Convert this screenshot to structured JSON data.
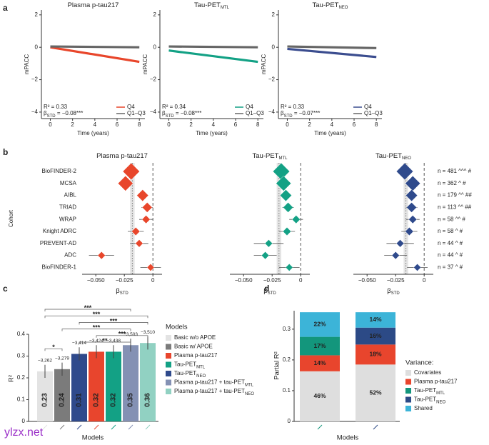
{
  "panel_letters": [
    "a",
    "b",
    "c",
    "d"
  ],
  "watermark": "ylzx.net",
  "chart_data": [
    {
      "type": "line",
      "title": "Plasma p-tau217",
      "x_label": "Time (years)",
      "y_label": "mPACC",
      "x": [
        0,
        8
      ],
      "xlim": [
        -0.8,
        8.5
      ],
      "ylim": [
        -4.4,
        2.3
      ],
      "xticks": [
        0,
        2,
        4,
        6,
        8
      ],
      "yticks": [
        {
          "value": -4,
          "label": "−4"
        },
        {
          "value": -2,
          "label": "−2"
        },
        0,
        2
      ],
      "series": [
        {
          "name": "Q4",
          "color": "#e8462b",
          "values": [
            0.0,
            -0.9
          ]
        },
        {
          "name": "Q1–Q3",
          "color": "#666666",
          "values": [
            0.05,
            0.0
          ]
        }
      ],
      "annotations": {
        "r2": "R² = 0.33",
        "beta": "β",
        "beta_sub": "STD",
        "beta_text": " = −0.08***"
      },
      "legend": "lower right"
    },
    {
      "type": "line",
      "title": "Tau-PET",
      "title_sub": "MTL",
      "x_label": "Time (years)",
      "y_label": "mPACC",
      "x": [
        0,
        8
      ],
      "xlim": [
        -0.8,
        8.5
      ],
      "ylim": [
        -4.4,
        2.3
      ],
      "xticks": [
        0,
        2,
        4,
        6,
        8
      ],
      "yticks": [
        {
          "value": -4,
          "label": "−4"
        },
        {
          "value": -2,
          "label": "−2"
        },
        0,
        2
      ],
      "series": [
        {
          "name": "Q4",
          "color": "#13a185",
          "values": [
            -0.2,
            -0.9
          ]
        },
        {
          "name": "Q1–Q3",
          "color": "#666666",
          "values": [
            0.05,
            0.0
          ]
        }
      ],
      "annotations": {
        "r2": "R² = 0.34",
        "beta": "β",
        "beta_sub": "STD",
        "beta_text": " = −0.08***"
      },
      "legend": "lower right"
    },
    {
      "type": "line",
      "title": "Tau-PET",
      "title_sub": "NEO",
      "x_label": "Time (years)",
      "y_label": "mPACC",
      "x": [
        0,
        8
      ],
      "xlim": [
        -0.8,
        8.5
      ],
      "ylim": [
        -4.4,
        2.3
      ],
      "xticks": [
        0,
        2,
        4,
        6,
        8
      ],
      "yticks": [
        {
          "value": -4,
          "label": "−4"
        },
        {
          "value": -2,
          "label": "−2"
        },
        0,
        2
      ],
      "series": [
        {
          "name": "Q4",
          "color": "#3b4d8f",
          "values": [
            -0.1,
            -0.6
          ]
        },
        {
          "name": "Q1–Q3",
          "color": "#666666",
          "values": [
            0.05,
            -0.05
          ]
        }
      ],
      "annotations": {
        "r2": "R² = 0.33",
        "beta": "β",
        "beta_sub": "STD",
        "beta_text": " = −0.07***"
      },
      "legend": "lower right"
    },
    {
      "type": "forest",
      "title": "Plasma p-tau217",
      "y_label": "Cohort",
      "x_label": "β",
      "x_label_sub": "STD",
      "color": "#e8462b",
      "categories": [
        "BioFINDER-2",
        "MCSA",
        "AIBL",
        "TRIAD",
        "WRAP",
        "Knight ADRC",
        "PREVENT-AD",
        "ADC",
        "BioFINDER-1"
      ],
      "n": [
        481,
        362,
        179,
        113,
        58,
        58,
        44,
        44,
        37
      ],
      "n_labels": [
        "n = 481 ^^^ #",
        "n = 362 ^ #",
        "n = 179 ^^ ##",
        "n = 113 ^^ ##",
        "n = 58 ^^ #",
        "n = 58 ^ #",
        "n = 44 ^ #",
        "n = 44 ^ #",
        "n = 37 ^ #"
      ],
      "values": [
        -0.019,
        -0.024,
        -0.009,
        -0.005,
        -0.006,
        -0.015,
        -0.012,
        -0.045,
        -0.002
      ],
      "errors": [
        0.004,
        0.004,
        0.004,
        0.005,
        0.006,
        0.007,
        0.008,
        0.011,
        0.009
      ],
      "pooled": -0.018,
      "pooled_ci": 0.002,
      "xlim": [
        -0.062,
        0.008
      ],
      "xticks": [
        {
          "value": -0.05,
          "label": "−0.050"
        },
        {
          "value": -0.025,
          "label": "−0.025"
        },
        0
      ]
    },
    {
      "type": "forest",
      "title": "Tau-PET",
      "title_sub": "MTL",
      "x_label": "β",
      "x_label_sub": "STD",
      "color": "#13a185",
      "values": [
        -0.017,
        -0.015,
        -0.013,
        -0.011,
        -0.004,
        -0.012,
        -0.028,
        -0.031,
        -0.01
      ],
      "errors": [
        0.004,
        0.004,
        0.004,
        0.005,
        0.006,
        0.007,
        0.013,
        0.01,
        0.009
      ],
      "pooled": -0.019,
      "pooled_ci": 0.002,
      "xlim": [
        -0.062,
        0.008
      ],
      "xticks": [
        {
          "value": -0.05,
          "label": "−0.050"
        },
        {
          "value": -0.025,
          "label": "−0.025"
        },
        0
      ]
    },
    {
      "type": "forest",
      "title": "Tau-PET",
      "title_sub": "NEO",
      "x_label": "β",
      "x_label_sub": "STD",
      "color": "#2f4a8c",
      "values": [
        -0.017,
        -0.01,
        -0.011,
        -0.011,
        -0.01,
        -0.013,
        -0.021,
        -0.025,
        -0.006
      ],
      "errors": [
        0.004,
        0.004,
        0.004,
        0.005,
        0.006,
        0.007,
        0.012,
        0.01,
        0.009
      ],
      "pooled": -0.016,
      "pooled_ci": 0.002,
      "xlim": [
        -0.062,
        0.008
      ],
      "xticks": [
        {
          "value": -0.05,
          "label": "−0.050"
        },
        {
          "value": -0.025,
          "label": "−0.025"
        },
        0
      ]
    },
    {
      "type": "bar",
      "x_label": "Models",
      "y_label": "R²",
      "values": [
        0.23,
        0.24,
        0.31,
        0.32,
        0.32,
        0.35,
        0.36
      ],
      "errors": [
        0.03,
        0.03,
        0.03,
        0.03,
        0.03,
        0.03,
        0.03
      ],
      "colors": [
        "#e3e3e3",
        "#7b7b7b",
        "#2f4a8c",
        "#e8452d",
        "#13a185",
        "#8491b4",
        "#91d1c2"
      ],
      "aic_labels": [
        "−3,262",
        "−3,279",
        "−3,414",
        "−3,424",
        "−3,438",
        "−3,503",
        "−3,510"
      ],
      "ylim": [
        0,
        0.4
      ],
      "yticks": [
        0,
        0.1,
        0.2,
        0.3,
        0.4
      ],
      "brackets": [
        {
          "from": 0,
          "to": 5,
          "label": "***"
        },
        {
          "from": 0,
          "to": 6,
          "label": "***"
        },
        {
          "from": 2,
          "to": 6,
          "label": "***"
        },
        {
          "from": 1,
          "to": 5,
          "label": "***"
        },
        {
          "from": 3,
          "to": 6,
          "label": "***"
        },
        {
          "from": 2,
          "to": 5,
          "label": "**"
        },
        {
          "from": 0,
          "to": 1,
          "label": "*"
        }
      ],
      "legend": {
        "title": "Models",
        "entries": [
          {
            "name": "Basic w/o APOE",
            "color": "#e3e3e3"
          },
          {
            "name": "Basic w/ APOE",
            "color": "#7b7b7b"
          },
          {
            "name": "Plasma p-tau217",
            "color": "#e8452d"
          },
          {
            "name": "Tau-PET",
            "sub": "MTL",
            "color": "#13a185"
          },
          {
            "name": "Tau-PET",
            "sub": "NEO",
            "color": "#2f4a8c"
          },
          {
            "name": "Plasma p-tau217 + tau-PET",
            "sub": "MTL",
            "color": "#8491b4"
          },
          {
            "name": "Plasma p-tau217 + tau-PET",
            "sub": "NEO",
            "color": "#91d1c2"
          }
        ]
      }
    },
    {
      "type": "stacked_bar",
      "x_label": "Models",
      "y_label": "Partial R²",
      "legend_title": "Variance:",
      "ylim": [
        0,
        0.36
      ],
      "yticks": [
        0,
        0.1,
        0.2,
        0.3
      ],
      "series": [
        {
          "name": "Covariates",
          "color": "#dedede",
          "values": [
            0.163,
            0.185
          ],
          "labels": [
            "46%",
            "52%"
          ]
        },
        {
          "name": "Plasma p-tau217",
          "color": "#e8452d",
          "values": [
            0.052,
            0.065
          ],
          "labels": [
            "14%",
            "18%"
          ]
        },
        {
          "name": "Tau-PET",
          "sub": "MTL",
          "color": "#13967c",
          "values": [
            0.06,
            null
          ],
          "labels": [
            "17%",
            null
          ]
        },
        {
          "name": "Tau-PET",
          "sub": "NEO",
          "color": "#2c4a86",
          "values": [
            null,
            0.055
          ],
          "labels": [
            null,
            "16%"
          ]
        },
        {
          "name": "Shared",
          "color": "#3cb4d8",
          "values": [
            0.08,
            0.05
          ],
          "labels": [
            "22%",
            "14%"
          ]
        }
      ]
    }
  ]
}
